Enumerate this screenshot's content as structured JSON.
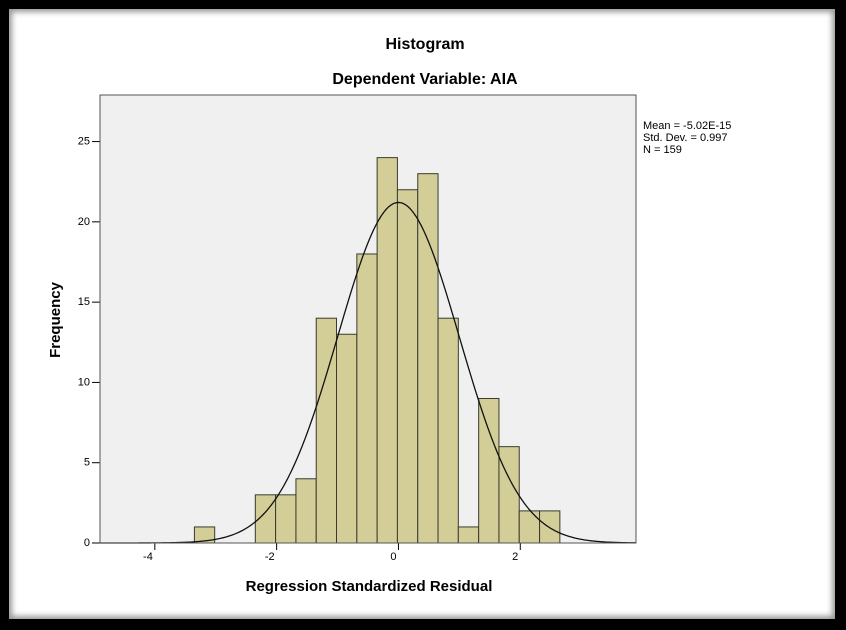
{
  "chart_data": {
    "type": "histogram",
    "title": "Histogram",
    "subtitle": "Dependent Variable: AIA",
    "x_label": "Regression Standardized Residual",
    "y_label": "Frequency",
    "bins": [
      -3.35,
      -3.017,
      -2.683,
      -2.35,
      -2.017,
      -1.683,
      -1.35,
      -1.017,
      -0.683,
      -0.35,
      -0.017,
      0.317,
      0.65,
      0.983,
      1.317,
      1.65,
      1.983,
      2.317,
      2.65
    ],
    "values": [
      1,
      0,
      0,
      3,
      3,
      4,
      14,
      13,
      18,
      24,
      22,
      23,
      14,
      1,
      9,
      6,
      2,
      2
    ],
    "color": "#d3ce98",
    "edge_color": "#3a3a2e",
    "background": "#f0f0f0",
    "xlim": [
      -4.9,
      3.9
    ],
    "xticks": [
      -4,
      -2,
      0,
      2
    ],
    "ylim": [
      0,
      27.9
    ],
    "yticks": [
      0,
      5,
      10,
      15,
      20,
      25
    ],
    "stats": [
      {
        "label": "Mean = -5.02E-15",
        "value": -5.02e-15
      },
      {
        "label": "Std. Dev. = 0.997",
        "value": 0.997
      },
      {
        "label": "N = 159",
        "value": 159
      }
    ],
    "normal_curve": true
  }
}
